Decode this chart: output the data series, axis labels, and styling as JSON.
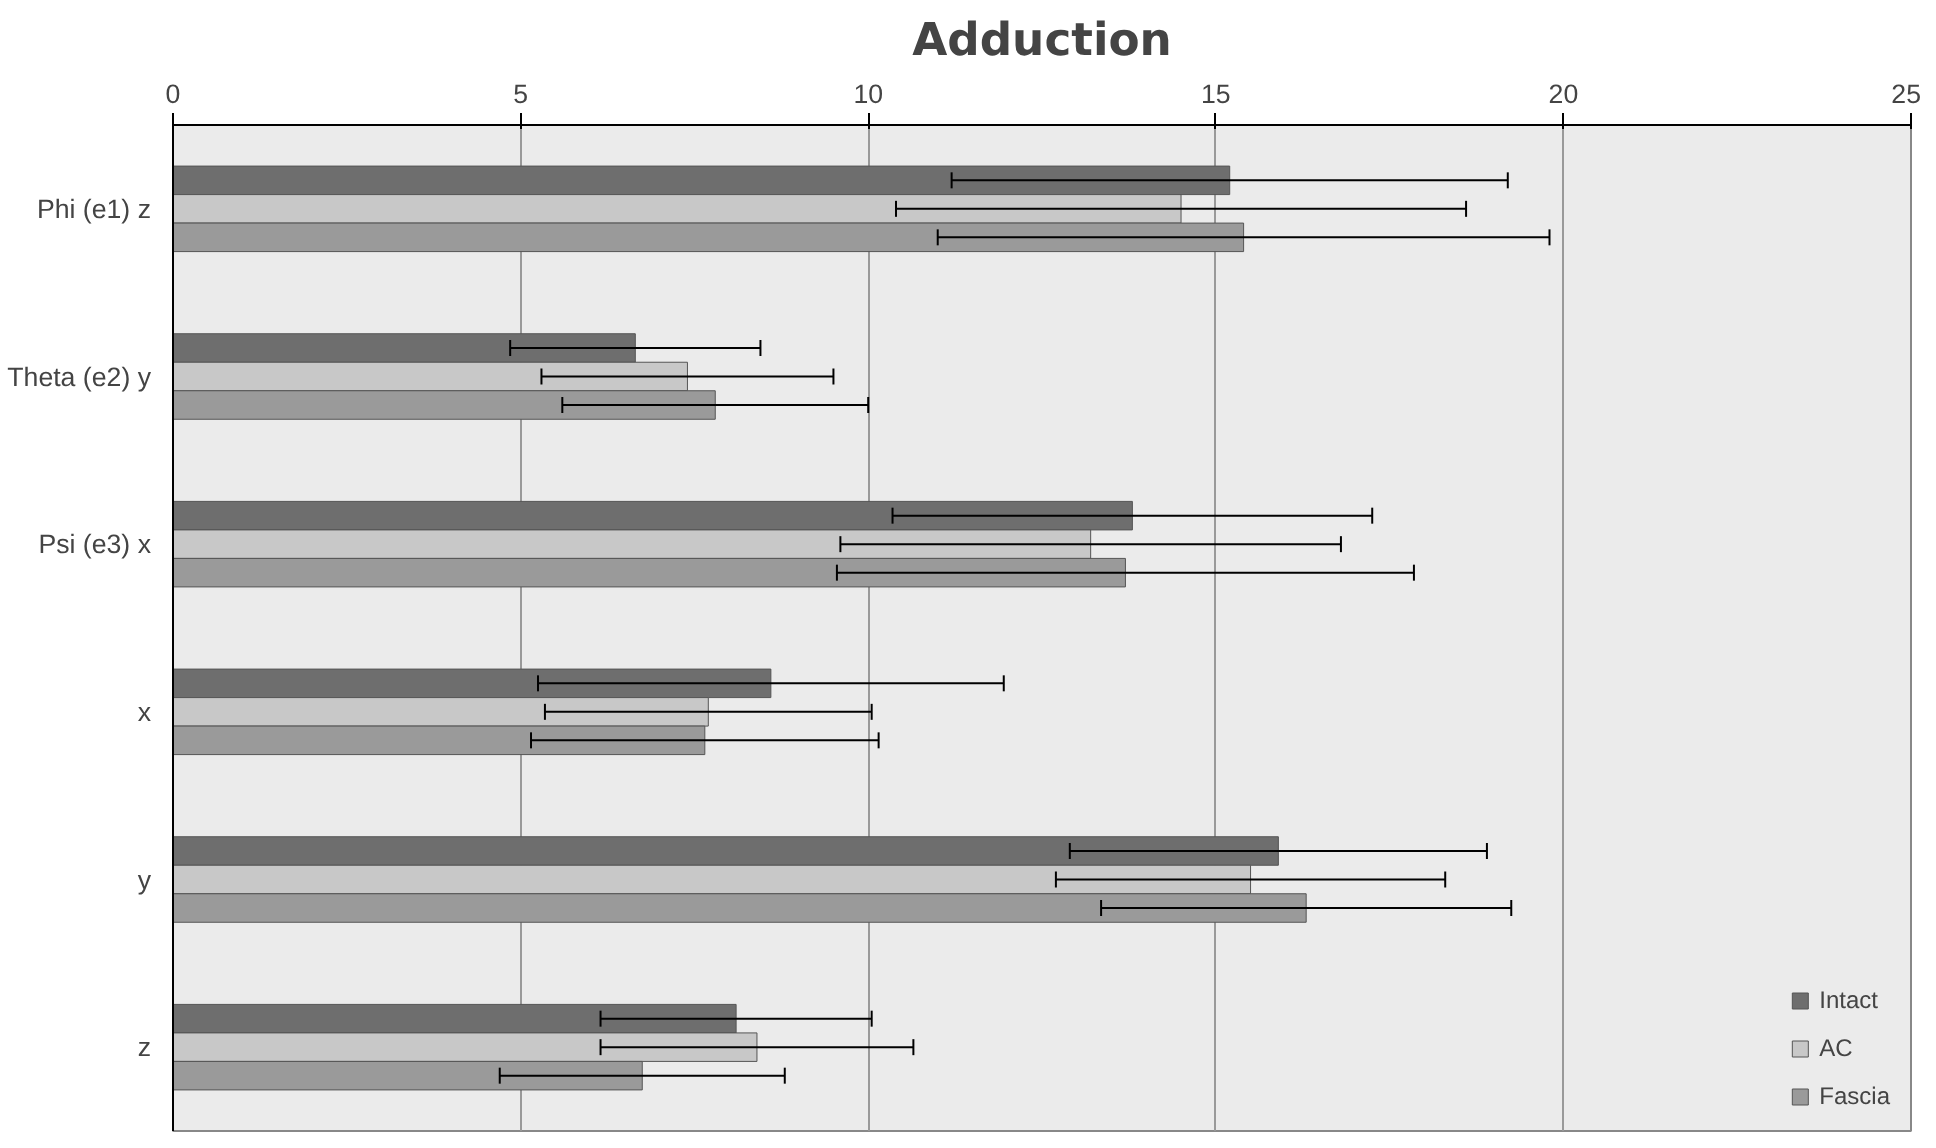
{
  "chart_data": {
    "type": "bar",
    "orientation": "horizontal",
    "title": "Adduction",
    "categories": [
      "Phi (e1) z",
      "Theta (e2) y",
      "Psi (e3) x",
      "x",
      "y",
      "z"
    ],
    "series": [
      {
        "name": "Intact",
        "color": "#6e6e6e",
        "values": [
          15.2,
          6.65,
          13.8,
          8.6,
          15.9,
          8.1
        ],
        "errors": [
          4.0,
          1.8,
          3.45,
          3.35,
          3.0,
          1.95
        ]
      },
      {
        "name": "AC",
        "color": "#c8c8c8",
        "values": [
          14.5,
          7.4,
          13.2,
          7.7,
          15.5,
          8.4
        ],
        "errors": [
          4.1,
          2.1,
          3.6,
          2.35,
          2.8,
          2.25
        ]
      },
      {
        "name": "Fascia",
        "color": "#9a9a9a",
        "values": [
          15.4,
          7.8,
          13.7,
          7.65,
          16.3,
          6.75
        ],
        "errors": [
          4.4,
          2.2,
          4.15,
          2.5,
          2.95,
          2.05
        ]
      }
    ],
    "xlim": [
      0,
      25
    ],
    "xticks": [
      0,
      5,
      10,
      15,
      20,
      25
    ],
    "grid": "x",
    "legend": "bottom right"
  }
}
